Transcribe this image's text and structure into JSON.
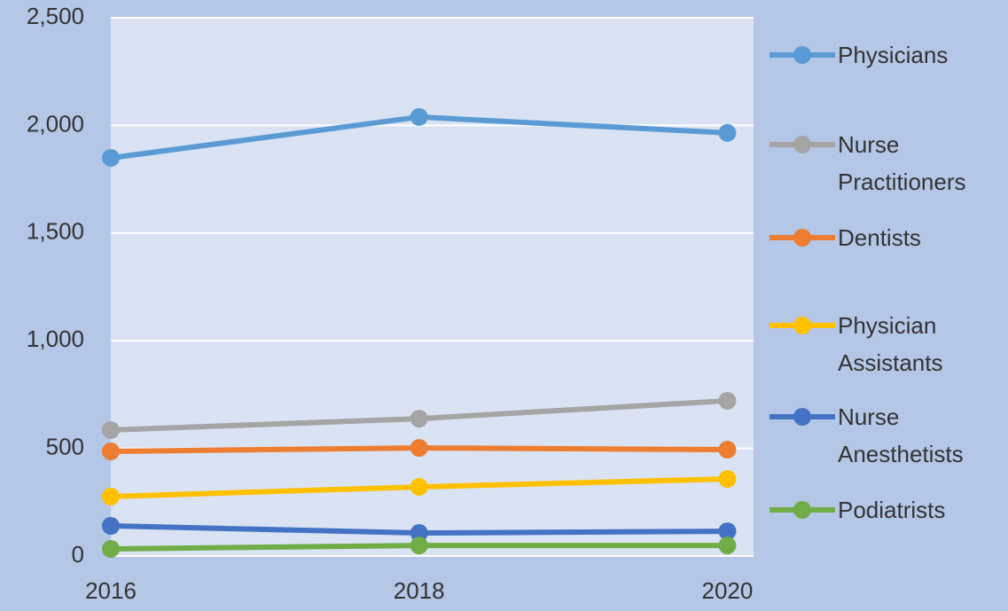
{
  "chart_data": {
    "type": "line",
    "x": [
      2016,
      2018,
      2020
    ],
    "xlim": [
      2016,
      2020.17
    ],
    "xticks": [
      2016,
      2018,
      2020
    ],
    "ylim": [
      0,
      2500
    ],
    "yticks": [
      0,
      500,
      {
        "value": 1000,
        "label": "1,000"
      },
      {
        "value": 1500,
        "label": "1,500"
      },
      {
        "value": 2000,
        "label": "2,000"
      },
      {
        "value": 2500,
        "label": "2,500"
      }
    ],
    "grid": true,
    "legend": "right",
    "series": [
      {
        "name": "Physicians",
        "color": "#5b9bd5",
        "values": [
          1849,
          2039,
          1965
        ]
      },
      {
        "name": "Nurse Practitioners",
        "color": "#a5a5a5",
        "values": [
          585,
          638,
          721
        ]
      },
      {
        "name": "Dentists",
        "color": "#ed7d31",
        "values": [
          486,
          502,
          494
        ]
      },
      {
        "name": "Physician Assistants",
        "color": "#ffc000",
        "values": [
          276,
          321,
          358
        ]
      },
      {
        "name": "Nurse Anesthetists",
        "color": "#4472c4",
        "values": [
          140,
          107,
          115
        ]
      },
      {
        "name": "Podiatrists",
        "color": "#70ad47",
        "values": [
          33,
          49,
          49
        ]
      }
    ]
  }
}
